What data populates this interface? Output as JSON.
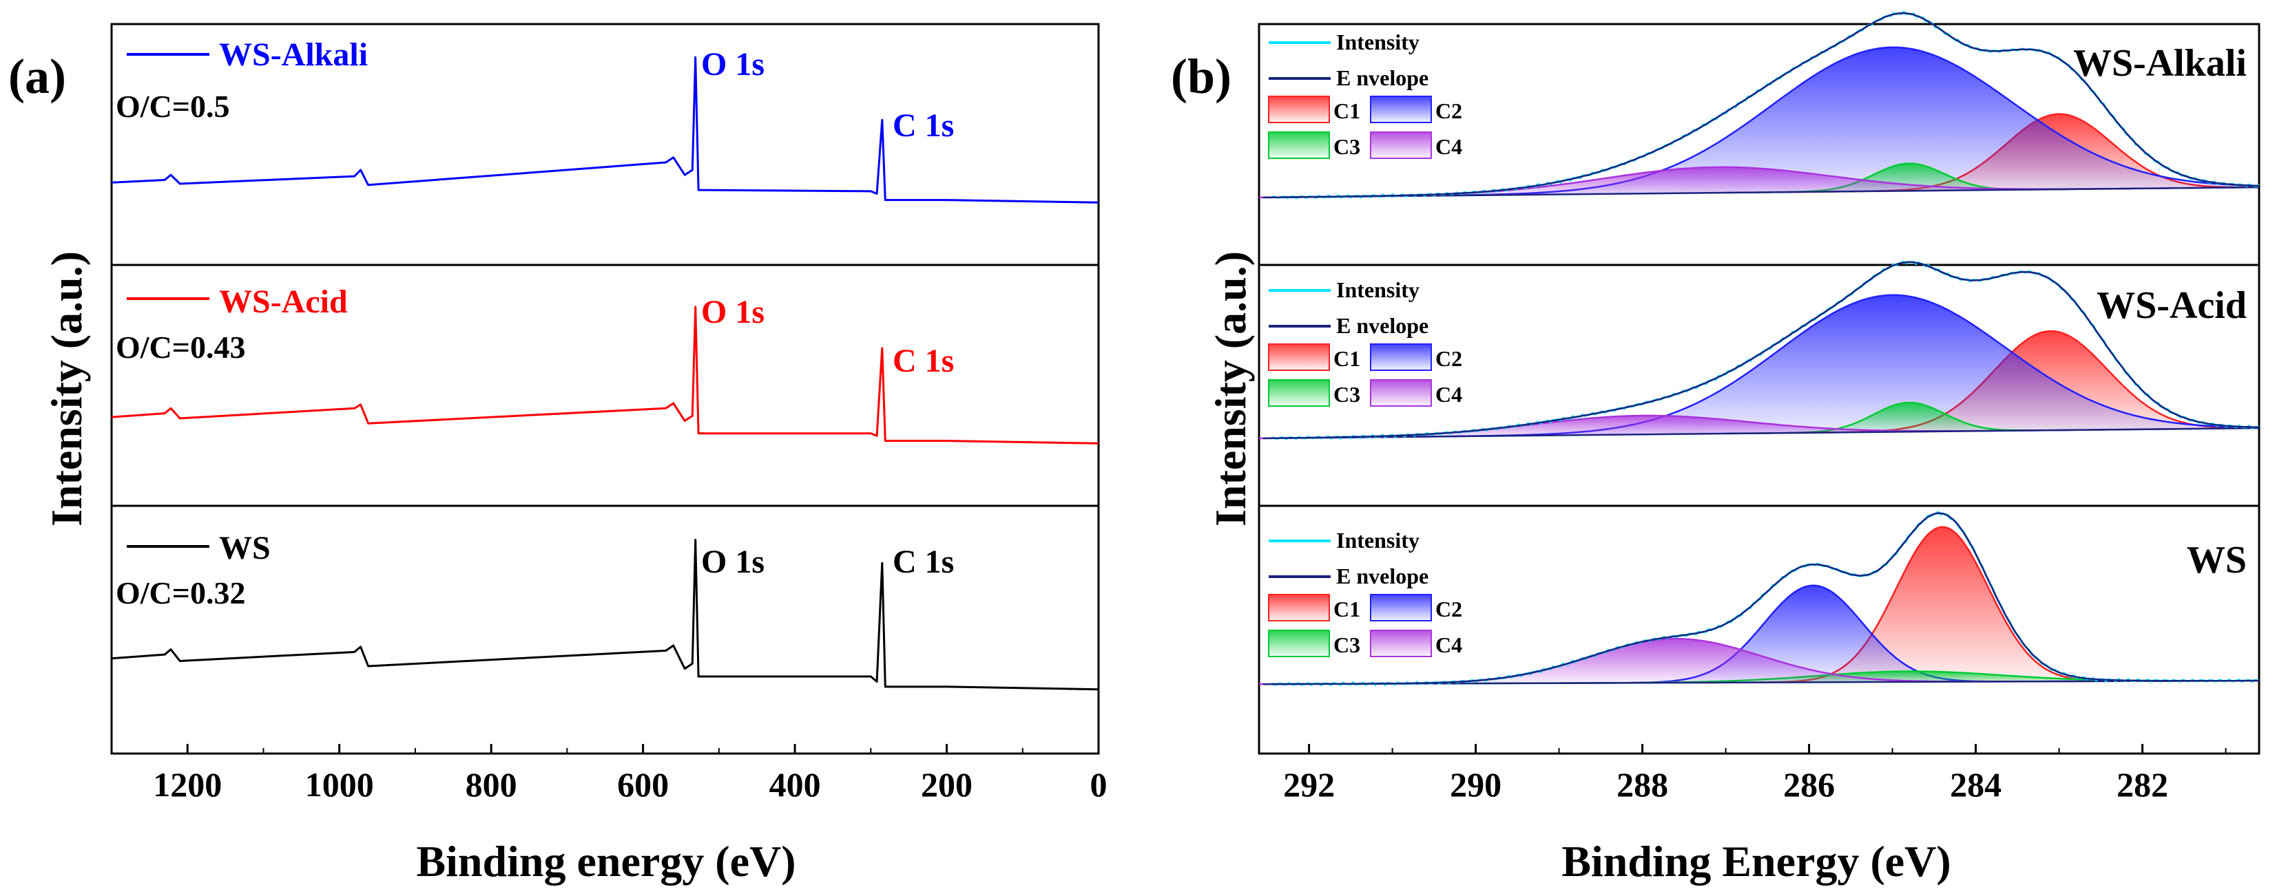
{
  "chart_data": [
    {
      "type": "line",
      "panel_label": "(a)",
      "title": "",
      "xlabel": "Binding energy (eV)",
      "ylabel": "Intensity (a.u.)",
      "xlim": [
        1300,
        0
      ],
      "x_ticks": [
        "1200",
        "1000",
        "800",
        "600",
        "400",
        "200",
        "0"
      ],
      "x_tick_values": [
        1200,
        1000,
        800,
        600,
        400,
        200,
        0
      ],
      "stacked_panels": [
        {
          "sample": "WS-Alkali",
          "color": "#0000ff",
          "ratio_text": "O/C=0.5",
          "peak_labels": [
            {
              "text": "O 1s",
              "x": 531
            },
            {
              "text": "C 1s",
              "x": 285
            }
          ],
          "spectrum": [
            {
              "x": 1300,
              "y": 0.12
            },
            {
              "x": 1230,
              "y": 0.14
            },
            {
              "x": 1222,
              "y": 0.18
            },
            {
              "x": 1210,
              "y": 0.11
            },
            {
              "x": 980,
              "y": 0.17
            },
            {
              "x": 972,
              "y": 0.22
            },
            {
              "x": 962,
              "y": 0.1
            },
            {
              "x": 570,
              "y": 0.28
            },
            {
              "x": 560,
              "y": 0.32
            },
            {
              "x": 545,
              "y": 0.18
            },
            {
              "x": 535,
              "y": 0.22
            },
            {
              "x": 531,
              "y": 1.12
            },
            {
              "x": 527,
              "y": 0.06
            },
            {
              "x": 300,
              "y": 0.05
            },
            {
              "x": 292,
              "y": 0.03
            },
            {
              "x": 285,
              "y": 0.62
            },
            {
              "x": 281,
              "y": -0.02
            },
            {
              "x": 200,
              "y": -0.02
            },
            {
              "x": 0,
              "y": -0.04
            }
          ]
        },
        {
          "sample": "WS-Acid",
          "color": "#ff0000",
          "ratio_text": "O/C=0.43",
          "peak_labels": [
            {
              "text": "O 1s",
              "x": 531
            },
            {
              "text": "C 1s",
              "x": 285
            }
          ],
          "spectrum": [
            {
              "x": 1300,
              "y": 0.17
            },
            {
              "x": 1230,
              "y": 0.2
            },
            {
              "x": 1222,
              "y": 0.24
            },
            {
              "x": 1210,
              "y": 0.16
            },
            {
              "x": 980,
              "y": 0.24
            },
            {
              "x": 972,
              "y": 0.27
            },
            {
              "x": 962,
              "y": 0.12
            },
            {
              "x": 570,
              "y": 0.24
            },
            {
              "x": 560,
              "y": 0.28
            },
            {
              "x": 545,
              "y": 0.14
            },
            {
              "x": 535,
              "y": 0.18
            },
            {
              "x": 531,
              "y": 1.05
            },
            {
              "x": 527,
              "y": 0.04
            },
            {
              "x": 300,
              "y": 0.04
            },
            {
              "x": 292,
              "y": 0.02
            },
            {
              "x": 285,
              "y": 0.72
            },
            {
              "x": 281,
              "y": -0.02
            },
            {
              "x": 200,
              "y": -0.02
            },
            {
              "x": 0,
              "y": -0.04
            }
          ]
        },
        {
          "sample": "WS",
          "color": "#000000",
          "ratio_text": "O/C=0.32",
          "peak_labels": [
            {
              "text": "O 1s",
              "x": 531
            },
            {
              "text": "C 1s",
              "x": 285
            }
          ],
          "spectrum": [
            {
              "x": 1300,
              "y": 0.2
            },
            {
              "x": 1230,
              "y": 0.23
            },
            {
              "x": 1222,
              "y": 0.27
            },
            {
              "x": 1210,
              "y": 0.18
            },
            {
              "x": 980,
              "y": 0.25
            },
            {
              "x": 972,
              "y": 0.29
            },
            {
              "x": 962,
              "y": 0.14
            },
            {
              "x": 570,
              "y": 0.26
            },
            {
              "x": 560,
              "y": 0.3
            },
            {
              "x": 545,
              "y": 0.12
            },
            {
              "x": 535,
              "y": 0.16
            },
            {
              "x": 531,
              "y": 1.12
            },
            {
              "x": 527,
              "y": 0.06
            },
            {
              "x": 300,
              "y": 0.06
            },
            {
              "x": 292,
              "y": 0.02
            },
            {
              "x": 285,
              "y": 0.94
            },
            {
              "x": 281,
              "y": -0.02
            },
            {
              "x": 200,
              "y": -0.02
            },
            {
              "x": 0,
              "y": -0.04
            }
          ]
        }
      ]
    },
    {
      "type": "line",
      "panel_label": "(b)",
      "title": "",
      "xlabel": "Binding Energy (eV)",
      "ylabel": "Intensity (a.u.)",
      "xlim": [
        292.6,
        280.6
      ],
      "x_ticks": [
        "292",
        "290",
        "288",
        "286",
        "284",
        "282"
      ],
      "x_tick_values": [
        292,
        290,
        288,
        286,
        284,
        282
      ],
      "legend": {
        "intensity_label": "Intensity",
        "envelope_label": "E nvelope",
        "components": [
          "C1",
          "C2",
          "C3",
          "C4"
        ]
      },
      "component_colors": {
        "Intensity": "#00e5ff",
        "Envelope": "#1a237e",
        "C1": "#ff2020",
        "C2": "#2020ff",
        "C3": "#00cc33",
        "C4": "#aa33dd"
      },
      "stacked_panels": [
        {
          "sample": "WS-Alkali",
          "baseline": {
            "start": 0.0,
            "end": 0.06
          },
          "components": [
            {
              "name": "C1",
              "center": 283.0,
              "height": 0.44,
              "fwhm": 1.5
            },
            {
              "name": "C2",
              "center": 285.0,
              "height": 0.84,
              "fwhm": 3.4
            },
            {
              "name": "C3",
              "center": 284.8,
              "height": 0.16,
              "fwhm": 1.0
            },
            {
              "name": "C4",
              "center": 287.1,
              "height": 0.15,
              "fwhm": 3.2
            }
          ]
        },
        {
          "sample": "WS-Acid",
          "baseline": {
            "start": 0.0,
            "end": 0.06
          },
          "components": [
            {
              "name": "C1",
              "center": 283.1,
              "height": 0.58,
              "fwhm": 1.6
            },
            {
              "name": "C2",
              "center": 285.0,
              "height": 0.8,
              "fwhm": 3.2
            },
            {
              "name": "C3",
              "center": 284.8,
              "height": 0.17,
              "fwhm": 1.0
            },
            {
              "name": "C4",
              "center": 288.0,
              "height": 0.11,
              "fwhm": 3.0
            }
          ]
        },
        {
          "sample": "WS",
          "baseline": {
            "start": 0.0,
            "end": 0.02
          },
          "components": [
            {
              "name": "C1",
              "center": 284.4,
              "height": 0.88,
              "fwhm": 1.3
            },
            {
              "name": "C2",
              "center": 285.95,
              "height": 0.55,
              "fwhm": 1.4
            },
            {
              "name": "C3",
              "center": 284.8,
              "height": 0.06,
              "fwhm": 2.6
            },
            {
              "name": "C4",
              "center": 287.6,
              "height": 0.25,
              "fwhm": 2.4
            }
          ]
        }
      ]
    }
  ]
}
